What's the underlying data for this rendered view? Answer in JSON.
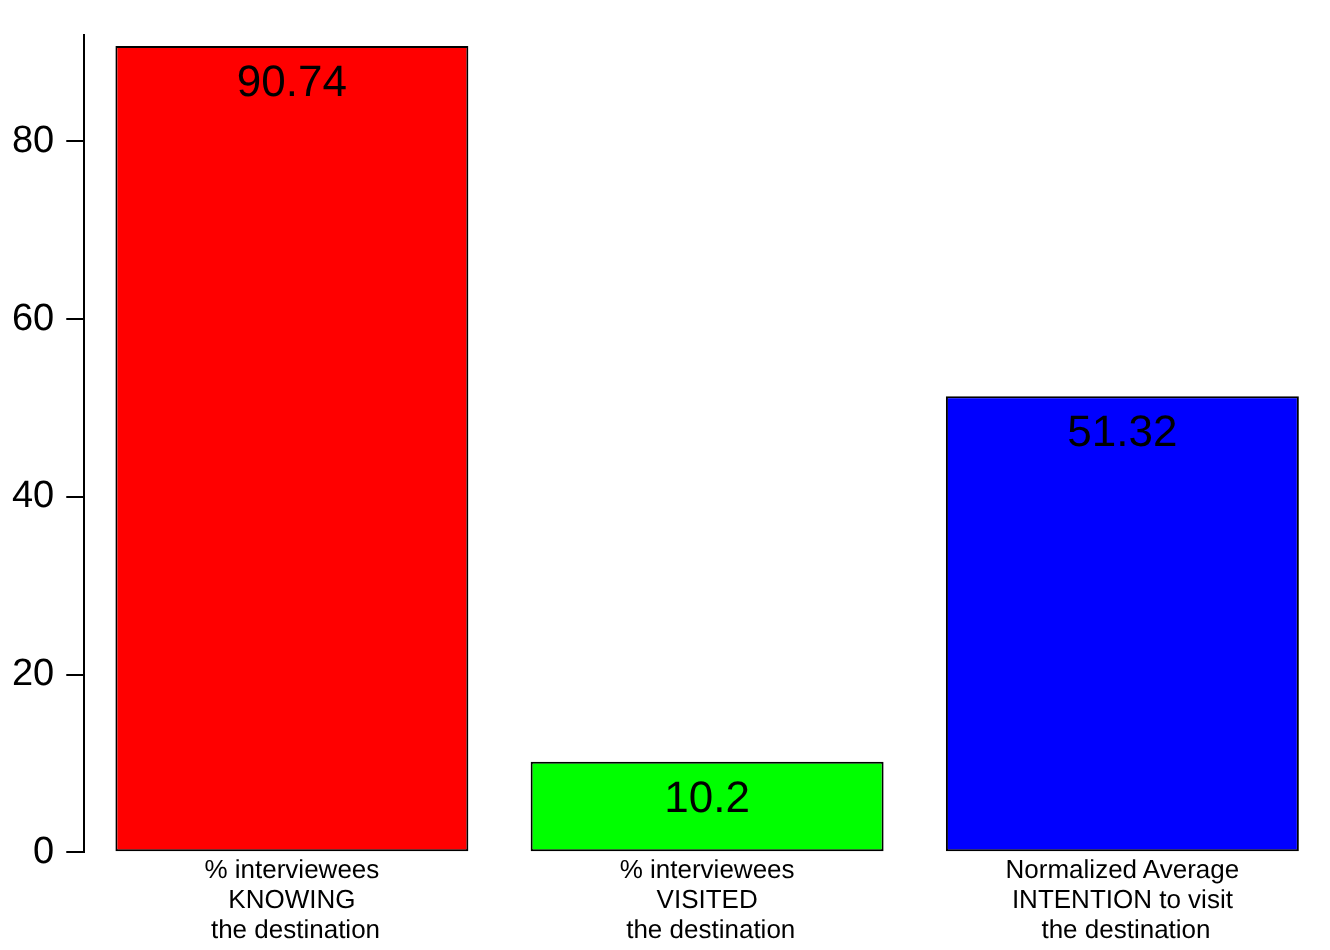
{
  "chart_data": {
    "type": "bar",
    "categories": [
      "% interviewees\nKNOWING\n the destination",
      "% interviewees\nVISITED\n the destination",
      "Normalized Average\nINTENTION to visit\n the destination"
    ],
    "values": [
      90.74,
      10.2,
      51.32
    ],
    "colors": [
      "#ff0000",
      "#00ff00",
      "#0000ff"
    ],
    "ylim": [
      0,
      92
    ],
    "yticks": [
      0,
      20,
      40,
      60,
      80
    ],
    "grid": false,
    "legend": false,
    "data_labels": true
  }
}
